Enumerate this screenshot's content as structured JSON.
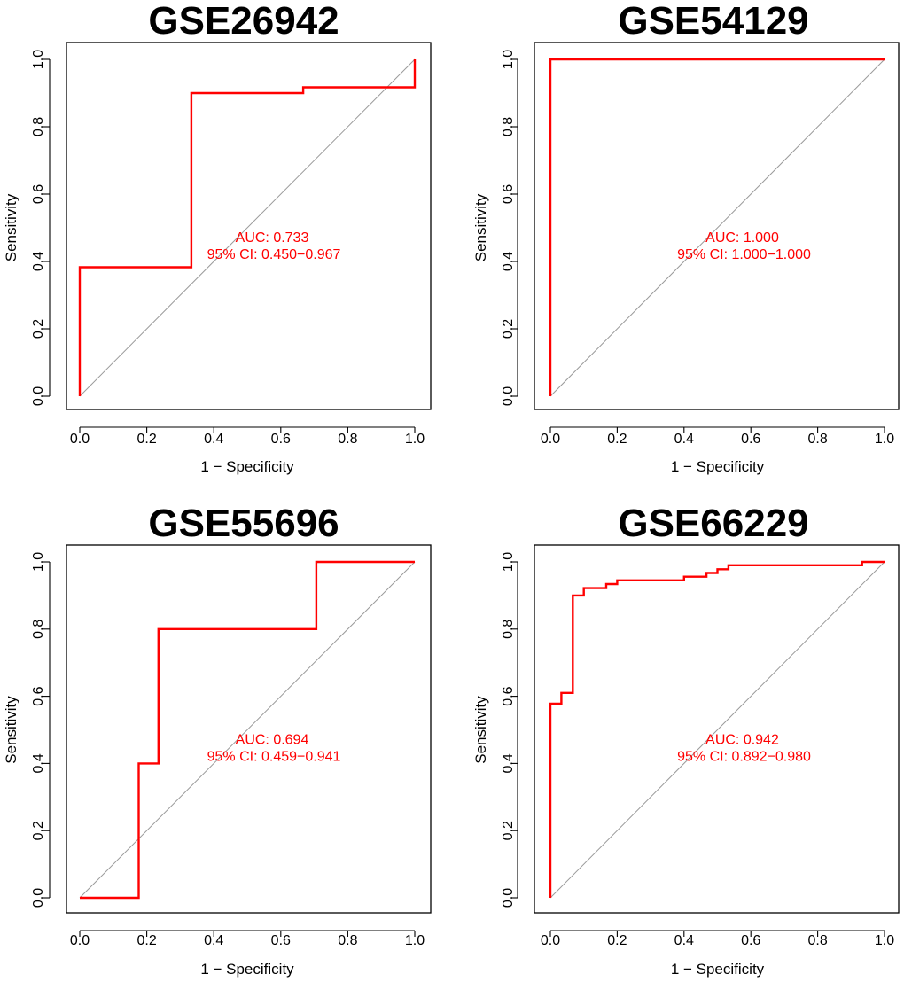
{
  "colors": {
    "roc": "#ff0000",
    "annotation": "#ff0000",
    "diagonal": "#9a9a9a",
    "axes": "#000000"
  },
  "chart_data": [
    {
      "type": "line",
      "title": "GSE26942",
      "xlabel": "1 − Specificity",
      "ylabel": "Sensitivity",
      "xlim": [
        0,
        1
      ],
      "ylim": [
        0,
        1
      ],
      "xticks": [
        "0.0",
        "0.2",
        "0.4",
        "0.6",
        "0.8",
        "1.0"
      ],
      "yticks": [
        "0.0",
        "0.2",
        "0.4",
        "0.6",
        "0.8",
        "1.0"
      ],
      "auc_label": "AUC: 0.733",
      "ci_label": "95% CI: 0.450−0.967",
      "reference_line": [
        [
          0,
          0
        ],
        [
          1,
          1
        ]
      ],
      "series": [
        {
          "name": "ROC",
          "x": [
            0,
            0,
            0.333,
            0.333,
            0.667,
            0.667,
            1,
            1
          ],
          "y": [
            0,
            0.383,
            0.383,
            0.9,
            0.9,
            0.917,
            0.917,
            1
          ]
        }
      ]
    },
    {
      "type": "line",
      "title": "GSE54129",
      "xlabel": "1 − Specificity",
      "ylabel": "Sensitivity",
      "xlim": [
        0,
        1
      ],
      "ylim": [
        0,
        1
      ],
      "xticks": [
        "0.0",
        "0.2",
        "0.4",
        "0.6",
        "0.8",
        "1.0"
      ],
      "yticks": [
        "0.0",
        "0.2",
        "0.4",
        "0.6",
        "0.8",
        "1.0"
      ],
      "auc_label": "AUC: 1.000",
      "ci_label": "95% CI: 1.000−1.000",
      "reference_line": [
        [
          0,
          0
        ],
        [
          1,
          1
        ]
      ],
      "series": [
        {
          "name": "ROC",
          "x": [
            0,
            0,
            1
          ],
          "y": [
            0,
            1,
            1
          ]
        }
      ]
    },
    {
      "type": "line",
      "title": "GSE55696",
      "xlabel": "1 − Specificity",
      "ylabel": "Sensitivity",
      "xlim": [
        0,
        1
      ],
      "ylim": [
        0,
        1
      ],
      "xticks": [
        "0.0",
        "0.2",
        "0.4",
        "0.6",
        "0.8",
        "1.0"
      ],
      "yticks": [
        "0.0",
        "0.2",
        "0.4",
        "0.6",
        "0.8",
        "1.0"
      ],
      "auc_label": "AUC: 0.694",
      "ci_label": "95% CI: 0.459−0.941",
      "reference_line": [
        [
          0,
          0
        ],
        [
          1,
          1
        ]
      ],
      "series": [
        {
          "name": "ROC",
          "x": [
            0,
            0.176,
            0.176,
            0.235,
            0.235,
            0.706,
            0.706,
            1
          ],
          "y": [
            0,
            0,
            0.4,
            0.4,
            0.8,
            0.8,
            1,
            1
          ]
        }
      ]
    },
    {
      "type": "line",
      "title": "GSE66229",
      "xlabel": "1 − Specificity",
      "ylabel": "Sensitivity",
      "xlim": [
        0,
        1
      ],
      "ylim": [
        0,
        1
      ],
      "xticks": [
        "0.0",
        "0.2",
        "0.4",
        "0.6",
        "0.8",
        "1.0"
      ],
      "yticks": [
        "0.0",
        "0.2",
        "0.4",
        "0.6",
        "0.8",
        "1.0"
      ],
      "auc_label": "AUC: 0.942",
      "ci_label": "95% CI: 0.892−0.980",
      "reference_line": [
        [
          0,
          0
        ],
        [
          1,
          1
        ]
      ],
      "series": [
        {
          "name": "ROC",
          "x": [
            0,
            0,
            0.033,
            0.033,
            0.067,
            0.067,
            0.1,
            0.1,
            0.167,
            0.167,
            0.2,
            0.2,
            0.4,
            0.4,
            0.467,
            0.467,
            0.5,
            0.5,
            0.533,
            0.533,
            0.933,
            0.933,
            1
          ],
          "y": [
            0,
            0.578,
            0.578,
            0.61,
            0.61,
            0.9,
            0.9,
            0.922,
            0.922,
            0.934,
            0.934,
            0.945,
            0.945,
            0.956,
            0.956,
            0.967,
            0.967,
            0.978,
            0.978,
            0.99,
            0.99,
            1,
            1
          ]
        }
      ]
    }
  ]
}
